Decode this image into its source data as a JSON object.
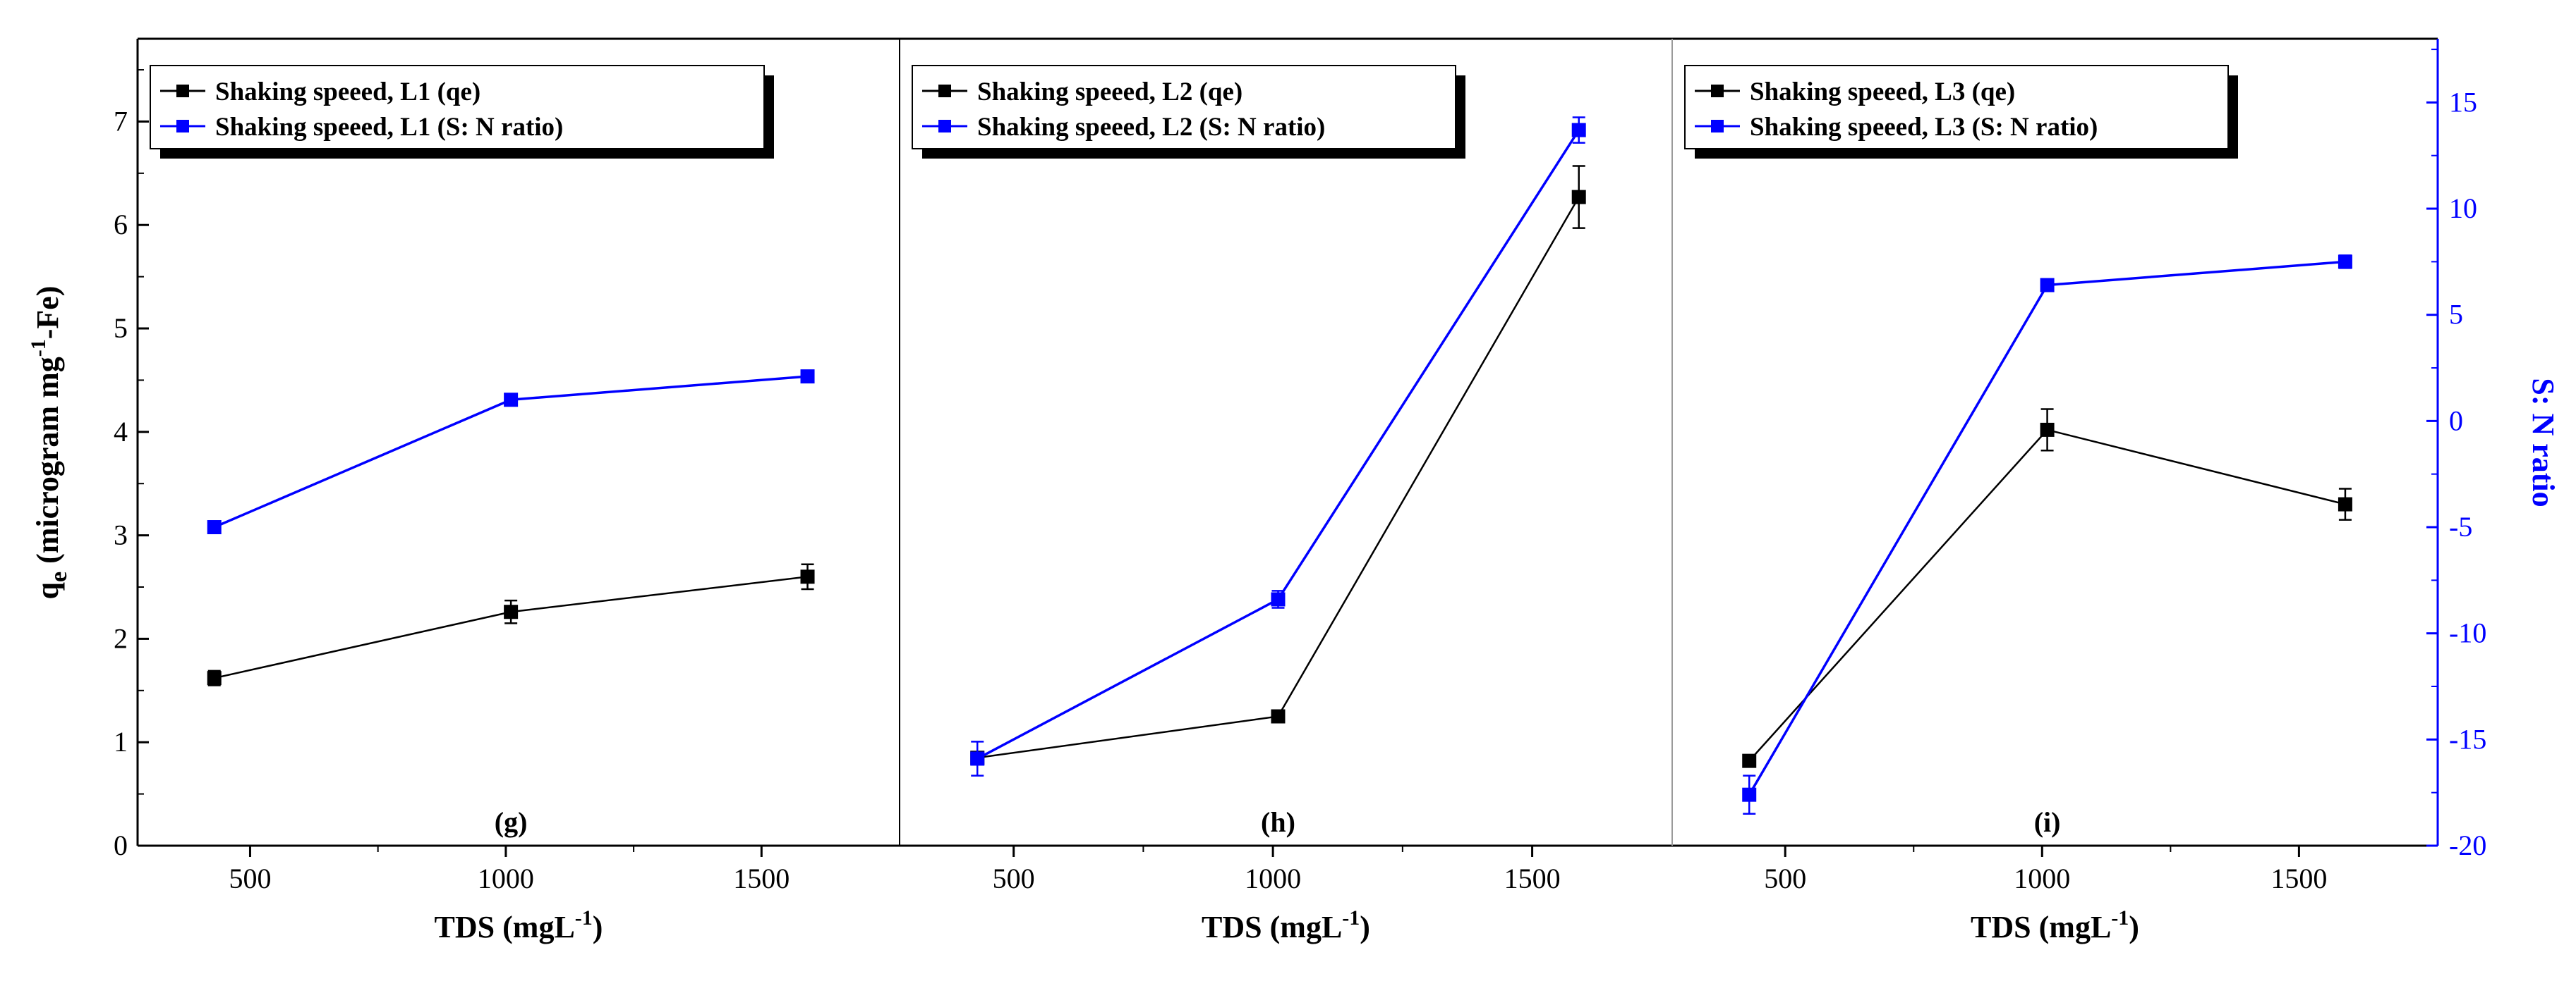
{
  "chart_data": {
    "type": "line",
    "y_left_label": "q",
    "y_left_sub": "e",
    "y_left_label_rest": " (microgram mg",
    "y_left_sup": "-1",
    "y_left_label_end": "-Fe)",
    "y_right_label": "S: N ratio",
    "y_left_ticks": [
      "0",
      "1",
      "2",
      "3",
      "4",
      "5",
      "6",
      "7"
    ],
    "y_right_ticks": [
      "-20",
      "-15",
      "-10",
      "-5",
      "0",
      "5",
      "10",
      "15"
    ],
    "y_left_range": [
      0,
      7.8
    ],
    "y_right_range": [
      -20,
      18
    ],
    "x_range": [
      280,
      1770
    ],
    "x_ticks": [
      "500",
      "1000",
      "1500"
    ],
    "colors": {
      "qe": "#000000",
      "sn": "#0000ff",
      "axis_right": "#0000ff"
    },
    "panels": [
      {
        "letter": "(g)",
        "xlabel": "TDS (mgL",
        "xlabel_sup": "-1",
        "xlabel_end": ")",
        "series": [
          {
            "name": "Shaking speeed, L1 (qe)",
            "axis": "left",
            "x": [
              430,
              1010,
              1590
            ],
            "values": [
              1.62,
              2.26,
              2.6
            ],
            "errors": [
              0.07,
              0.11,
              0.12
            ]
          },
          {
            "name": "Shaking speeed, L1 (S: N ratio)",
            "axis": "right",
            "x": [
              430,
              1010,
              1590
            ],
            "values": [
              -5.0,
              1.0,
              2.1
            ],
            "errors": [
              0.2,
              0.2,
              0.2
            ]
          }
        ]
      },
      {
        "letter": "(h)",
        "xlabel": "TDS (mgL",
        "xlabel_sup": "-1",
        "xlabel_end": ")",
        "series": [
          {
            "name": "Shaking speeed, L2 (qe)",
            "axis": "left",
            "x": [
              430,
              1010,
              1590
            ],
            "values": [
              0.85,
              1.25,
              6.27
            ],
            "errors": [
              0.05,
              0.05,
              0.3
            ]
          },
          {
            "name": "Shaking speeed, L2 (S: N ratio)",
            "axis": "right",
            "x": [
              430,
              1010,
              1590
            ],
            "values": [
              -15.9,
              -8.4,
              13.7
            ],
            "errors": [
              0.8,
              0.4,
              0.6
            ]
          }
        ]
      },
      {
        "letter": "(i)",
        "xlabel": "TDS (mgL",
        "xlabel_sup": "-1",
        "xlabel_end": ")",
        "series": [
          {
            "name": "Shaking speeed, L3 (qe)",
            "axis": "left",
            "x": [
              430,
              1010,
              1590
            ],
            "values": [
              0.82,
              4.02,
              3.3
            ],
            "errors": [
              0.05,
              0.2,
              0.15
            ]
          },
          {
            "name": "Shaking speeed, L3 (S: N ratio)",
            "axis": "right",
            "x": [
              430,
              1010,
              1590
            ],
            "values": [
              -17.6,
              6.4,
              7.5
            ],
            "errors": [
              0.9,
              0.2,
              0.3
            ]
          }
        ]
      }
    ]
  }
}
